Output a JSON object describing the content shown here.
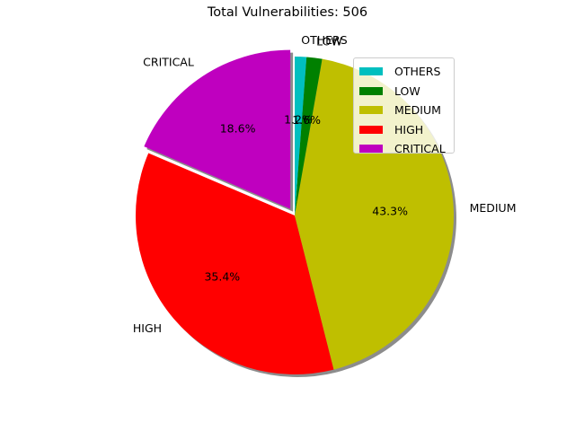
{
  "chart_data": {
    "type": "pie",
    "title": "Total Vulnerabilities: 506",
    "slices": [
      {
        "label": "CRITICAL",
        "pct_label": "18.6%",
        "value": 94,
        "color": "#bf00bf",
        "explode": true
      },
      {
        "label": "HIGH",
        "pct_label": "35.4%",
        "value": 179,
        "color": "#ff0000",
        "explode": false
      },
      {
        "label": "MEDIUM",
        "pct_label": "43.3%",
        "value": 219,
        "color": "#bfbf00",
        "explode": false
      },
      {
        "label": "LOW",
        "pct_label": "1.6%",
        "value": 8,
        "color": "#008000",
        "explode": false
      },
      {
        "label": "OTHERS",
        "pct_label": "1.2%",
        "value": 6,
        "color": "#00bfbf",
        "explode": false
      }
    ],
    "shadow": true,
    "legend": {
      "position": "top-right",
      "order": [
        "OTHERS",
        "LOW",
        "MEDIUM",
        "HIGH",
        "CRITICAL"
      ]
    }
  }
}
